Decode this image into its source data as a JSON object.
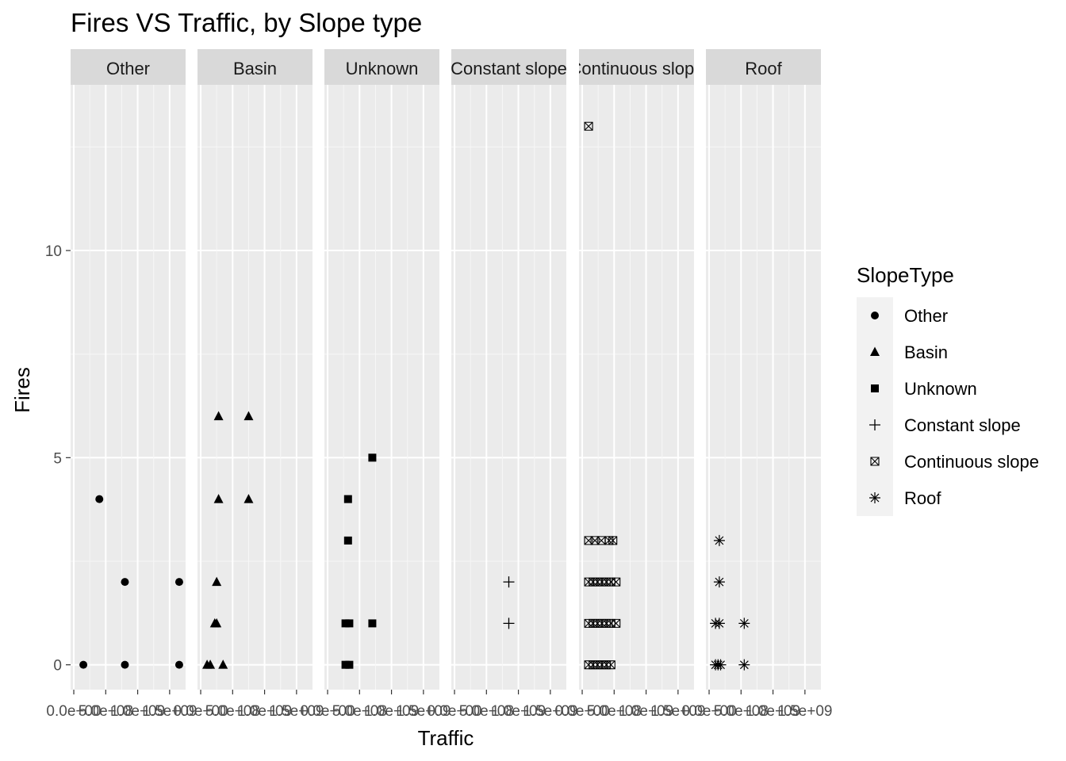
{
  "chart_data": {
    "type": "scatter",
    "title": "Fires VS Traffic, by Slope type",
    "xlabel": "Traffic",
    "ylabel": "Fires",
    "ylim": [
      -0.6,
      14.0
    ],
    "y_ticks": [
      "0",
      "5",
      "10"
    ],
    "x_ticks": [
      "0.0e+00",
      "5.0e+08",
      "1.0e+09",
      "1.5e+09"
    ],
    "x_ticks_last_panel": [
      "0.0e+00",
      "5.0e+08",
      "1.0e+09",
      "1.5e+09"
    ],
    "xlim": [
      -50000000.0,
      1750000000.0
    ],
    "grid": true,
    "legend_title": "SlopeType",
    "legend_position": "right",
    "series": [
      {
        "name": "Other",
        "shape": "circle",
        "points": [
          [
            150000000.0,
            0
          ],
          [
            400000000.0,
            4
          ],
          [
            800000000.0,
            2
          ],
          [
            800000000.0,
            0
          ],
          [
            1650000000.0,
            2
          ],
          [
            1650000000.0,
            0
          ]
        ]
      },
      {
        "name": "Basin",
        "shape": "triangle",
        "points": [
          [
            100000000.0,
            0
          ],
          [
            150000000.0,
            0
          ],
          [
            220000000.0,
            1
          ],
          [
            250000000.0,
            1
          ],
          [
            250000000.0,
            2
          ],
          [
            280000000.0,
            4
          ],
          [
            280000000.0,
            6
          ],
          [
            350000000.0,
            0
          ],
          [
            750000000.0,
            4
          ],
          [
            750000000.0,
            6
          ]
        ]
      },
      {
        "name": "Unknown",
        "shape": "square",
        "points": [
          [
            280000000.0,
            0
          ],
          [
            340000000.0,
            0
          ],
          [
            280000000.0,
            1
          ],
          [
            340000000.0,
            1
          ],
          [
            320000000.0,
            3
          ],
          [
            320000000.0,
            4
          ],
          [
            700000000.0,
            1
          ],
          [
            700000000.0,
            5
          ]
        ]
      },
      {
        "name": "Constant slope",
        "shape": "plus",
        "points": [
          [
            850000000.0,
            1
          ],
          [
            850000000.0,
            2
          ]
        ]
      },
      {
        "name": "Continuous slope",
        "shape": "boxx",
        "points": [
          [
            100000000.0,
            13
          ],
          [
            100000000.0,
            0
          ],
          [
            170000000.0,
            0
          ],
          [
            240000000.0,
            0
          ],
          [
            310000000.0,
            0
          ],
          [
            380000000.0,
            0
          ],
          [
            450000000.0,
            0
          ],
          [
            100000000.0,
            1
          ],
          [
            170000000.0,
            1
          ],
          [
            240000000.0,
            1
          ],
          [
            310000000.0,
            1
          ],
          [
            380000000.0,
            1
          ],
          [
            450000000.0,
            1
          ],
          [
            530000000.0,
            1
          ],
          [
            100000000.0,
            2
          ],
          [
            170000000.0,
            2
          ],
          [
            240000000.0,
            2
          ],
          [
            310000000.0,
            2
          ],
          [
            380000000.0,
            2
          ],
          [
            450000000.0,
            2
          ],
          [
            530000000.0,
            2
          ],
          [
            100000000.0,
            3
          ],
          [
            200000000.0,
            3
          ],
          [
            300000000.0,
            3
          ],
          [
            420000000.0,
            3
          ],
          [
            480000000.0,
            3
          ]
        ]
      },
      {
        "name": "Roof",
        "shape": "star",
        "points": [
          [
            100000000.0,
            0
          ],
          [
            140000000.0,
            0
          ],
          [
            180000000.0,
            0
          ],
          [
            550000000.0,
            0
          ],
          [
            100000000.0,
            1
          ],
          [
            160000000.0,
            1
          ],
          [
            550000000.0,
            1
          ],
          [
            160000000.0,
            2
          ],
          [
            160000000.0,
            3
          ]
        ]
      }
    ]
  }
}
